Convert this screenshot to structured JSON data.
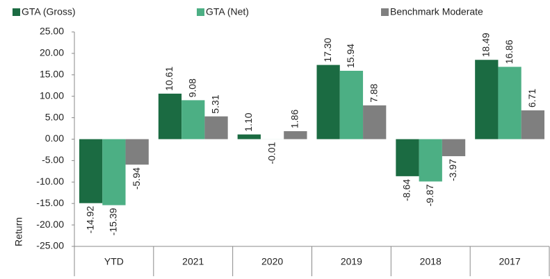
{
  "chart_data": {
    "type": "bar",
    "y_label": "Return",
    "categories": [
      "YTD",
      "2021",
      "2020",
      "2019",
      "2018",
      "2017"
    ],
    "series": [
      {
        "name": "GTA (Gross)",
        "color": "#1b6b42",
        "values": [
          -14.92,
          10.61,
          1.1,
          17.3,
          -8.64,
          18.49
        ],
        "value_labels": [
          "-14.92",
          "10.61",
          "1.10",
          "17.30",
          "-8.64",
          "18.49"
        ]
      },
      {
        "name": "GTA (Net)",
        "color": "#4caf84",
        "values": [
          -15.39,
          9.08,
          -0.01,
          15.94,
          -9.87,
          16.86
        ],
        "value_labels": [
          "-15.39",
          "9.08",
          "-0.01",
          "15.94",
          "-9.87",
          "16.86"
        ]
      },
      {
        "name": "Benchmark Moderate",
        "color": "#7f7f7f",
        "values": [
          -5.94,
          5.31,
          1.86,
          7.88,
          -3.97,
          6.71
        ],
        "value_labels": [
          "-5.94",
          "5.31",
          "1.86",
          "7.88",
          "-3.97",
          "6.71"
        ]
      }
    ],
    "ylim": [
      -25,
      25
    ],
    "yticks": [
      {
        "value": 25,
        "label": "25.00"
      },
      {
        "value": 20,
        "label": "20.00"
      },
      {
        "value": 15,
        "label": "15.00"
      },
      {
        "value": 10,
        "label": "10.00"
      },
      {
        "value": 5,
        "label": "5.00"
      },
      {
        "value": 0,
        "label": "0.00"
      },
      {
        "value": -5,
        "label": "-5.00"
      },
      {
        "value": -10,
        "label": "-10.00"
      },
      {
        "value": -15,
        "label": "-15.00"
      },
      {
        "value": -20,
        "label": "-20.00"
      },
      {
        "value": -25,
        "label": "-25.00"
      }
    ],
    "legend": "top",
    "grid": false
  }
}
